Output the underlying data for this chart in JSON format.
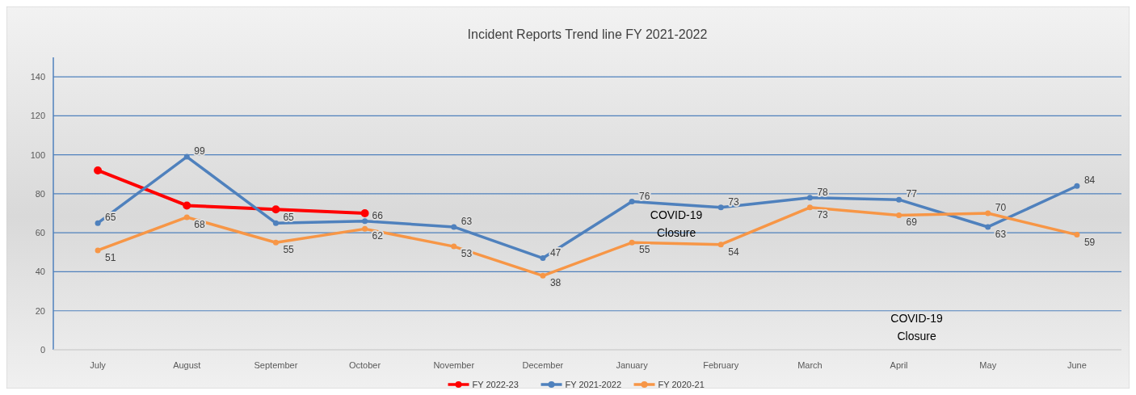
{
  "chart_data": {
    "type": "line",
    "title": "Incident Reports Trend line FY 2021-2022",
    "categories": [
      "July",
      "August",
      "September",
      "October",
      "November",
      "December",
      "January",
      "February",
      "March",
      "April",
      "May",
      "June"
    ],
    "series": [
      {
        "name": "FY 2022-23",
        "color": "#ff0000",
        "values": [
          92,
          74,
          72,
          70,
          null,
          null,
          null,
          null,
          null,
          null,
          null,
          null
        ]
      },
      {
        "name": "FY 2021-2022",
        "color": "#4f81bd",
        "values": [
          65,
          99,
          65,
          66,
          63,
          47,
          76,
          73,
          78,
          77,
          63,
          84
        ],
        "value_labels": [
          "65",
          "99",
          "65",
          "66",
          "63",
          "47",
          "76",
          "73",
          "78",
          "77",
          "63",
          "84"
        ]
      },
      {
        "name": "FY 2020-21",
        "color": "#f79646",
        "values": [
          51,
          68,
          55,
          62,
          53,
          38,
          55,
          54,
          73,
          69,
          70,
          59
        ],
        "value_labels": [
          "51",
          "68",
          "55",
          "62",
          "53",
          "38",
          "55",
          "54",
          "73",
          "69",
          "70",
          "59"
        ]
      }
    ],
    "ylim": [
      0,
      150
    ],
    "yticks": [
      0,
      20,
      40,
      60,
      80,
      100,
      120,
      140
    ],
    "grid": "y",
    "legend": "bottom",
    "marker": "circle",
    "line_style": "solid",
    "annotations": [
      "COVID-19 Closure",
      "COVID-19 Closure"
    ]
  }
}
